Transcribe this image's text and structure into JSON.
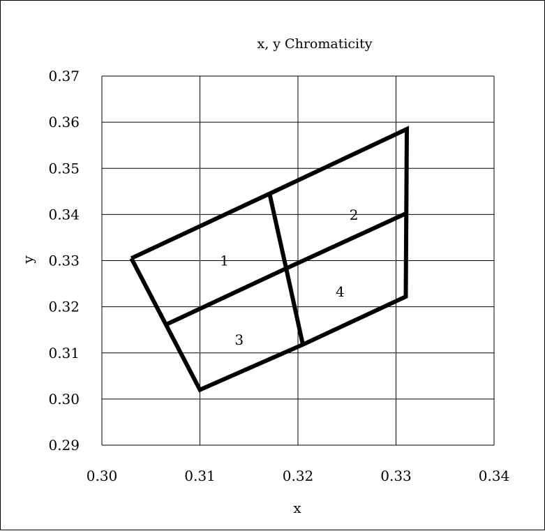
{
  "chart_data": {
    "type": "line",
    "title": "x, y Chromaticity",
    "xlabel": "x",
    "ylabel": "y",
    "xlim": [
      0.3,
      0.34
    ],
    "ylim": [
      0.29,
      0.37
    ],
    "x_ticks": [
      "0.30",
      "0.31",
      "0.32",
      "0.33",
      "0.34"
    ],
    "y_ticks": [
      "0.29",
      "0.30",
      "0.31",
      "0.32",
      "0.33",
      "0.34",
      "0.35",
      "0.36",
      "0.37"
    ],
    "grid": true,
    "colors": {
      "frame": "#000000",
      "grid": "#000000",
      "series": "#000000"
    },
    "series": [
      {
        "x": [
          0.303,
          0.3171,
          0.3311,
          0.331,
          0.3205,
          0.31,
          0.303
        ],
        "y": [
          0.3305,
          0.3445,
          0.3585,
          0.3222,
          0.3118,
          0.302,
          0.3305
        ]
      },
      {
        "x": [
          0.3066,
          0.3188,
          0.3311
        ],
        "y": [
          0.3162,
          0.3283,
          0.3403
        ]
      },
      {
        "x": [
          0.3171,
          0.3188,
          0.3205
        ],
        "y": [
          0.3445,
          0.3283,
          0.3118
        ]
      }
    ],
    "annotations": [
      {
        "text": "1",
        "x": 0.3125,
        "y": 0.33
      },
      {
        "text": "2",
        "x": 0.3257,
        "y": 0.3399
      },
      {
        "text": "3",
        "x": 0.314,
        "y": 0.3128
      },
      {
        "text": "4",
        "x": 0.3243,
        "y": 0.3233
      }
    ]
  }
}
